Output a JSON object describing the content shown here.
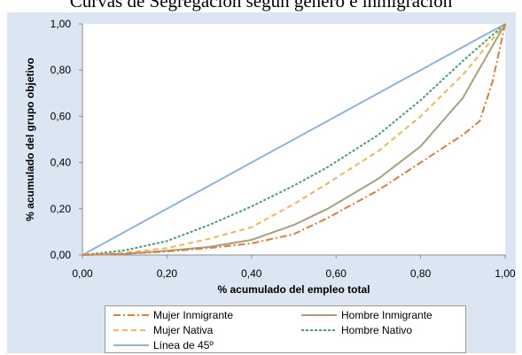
{
  "chart_data": {
    "type": "line",
    "title": "Curvas de Segregación según género e inmigración",
    "xlabel": "% acumulado del empleo total",
    "ylabel": "% acumulado del grupo objetivo",
    "xlim": [
      0,
      1
    ],
    "ylim": [
      0,
      1
    ],
    "xticks": [
      "0,00",
      "0,20",
      "0,40",
      "0,60",
      "0,80",
      "1,00"
    ],
    "yticks": [
      "0,00",
      "0,20",
      "0,40",
      "0,60",
      "0,80",
      "1,00"
    ],
    "grid": false,
    "legend_position": "bottom",
    "series": [
      {
        "name": "Mujer Inmigrante",
        "color": "#e07b39",
        "dash": "dashdot",
        "x": [
          0,
          0.1,
          0.2,
          0.3,
          0.4,
          0.5,
          0.58,
          0.7,
          0.8,
          0.9,
          0.94,
          0.97,
          1.0
        ],
        "y": [
          0,
          0.005,
          0.015,
          0.03,
          0.05,
          0.09,
          0.16,
          0.28,
          0.4,
          0.52,
          0.58,
          0.75,
          1.0
        ]
      },
      {
        "name": "Hombre Inmigrante",
        "color": "#a5a07e",
        "dash": "solid",
        "x": [
          0,
          0.1,
          0.2,
          0.3,
          0.4,
          0.5,
          0.58,
          0.7,
          0.8,
          0.9,
          0.95,
          1.0
        ],
        "y": [
          0,
          0.005,
          0.018,
          0.035,
          0.065,
          0.13,
          0.2,
          0.33,
          0.47,
          0.68,
          0.84,
          1.0
        ]
      },
      {
        "name": "Mujer Nativa",
        "color": "#f2b55a",
        "dash": "dashed",
        "x": [
          0,
          0.1,
          0.2,
          0.3,
          0.4,
          0.5,
          0.58,
          0.7,
          0.8,
          0.9,
          1.0
        ],
        "y": [
          0,
          0.01,
          0.03,
          0.07,
          0.12,
          0.22,
          0.31,
          0.45,
          0.6,
          0.78,
          1.0
        ]
      },
      {
        "name": "Hombre Nativo",
        "color": "#4a9a7a",
        "dash": "dashed",
        "x": [
          0,
          0.1,
          0.2,
          0.3,
          0.4,
          0.5,
          0.58,
          0.7,
          0.8,
          0.9,
          1.0
        ],
        "y": [
          0,
          0.02,
          0.06,
          0.13,
          0.21,
          0.3,
          0.38,
          0.52,
          0.67,
          0.84,
          1.0
        ]
      },
      {
        "name": "Línea de 45º",
        "color": "#8fb3d9",
        "dash": "solid",
        "x": [
          0,
          1.0
        ],
        "y": [
          0,
          1.0
        ]
      }
    ]
  }
}
